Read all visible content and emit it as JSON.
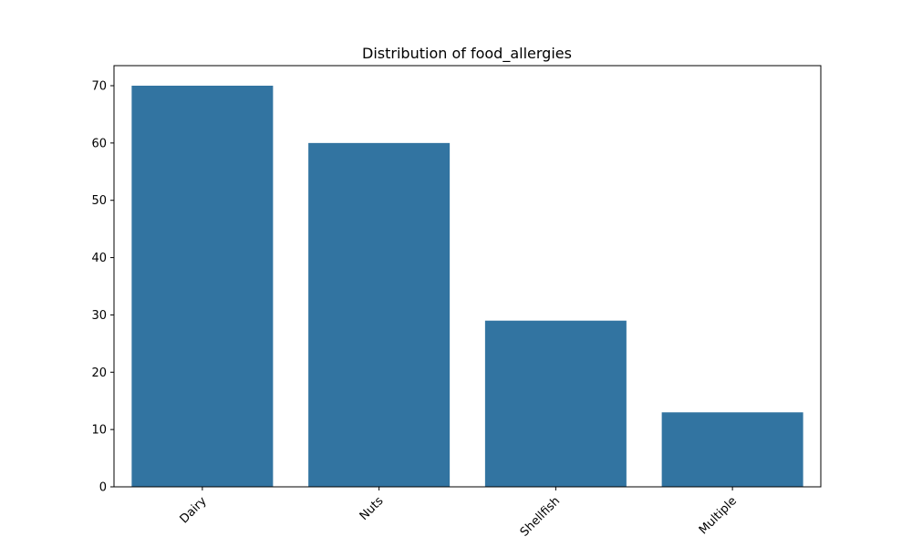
{
  "chart_data": {
    "type": "bar",
    "title": "Distribution of food_allergies",
    "xlabel": "",
    "ylabel": "",
    "categories": [
      "Dairy",
      "Nuts",
      "Shellfish",
      "Multiple"
    ],
    "values": [
      70,
      60,
      29,
      13
    ],
    "ylim": [
      0,
      73.5
    ],
    "yticks": [
      0,
      10,
      20,
      30,
      40,
      50,
      60,
      70
    ],
    "xtick_rotation_deg": 45,
    "grid": false,
    "legend": "none",
    "bar_color": "#3274a1"
  }
}
